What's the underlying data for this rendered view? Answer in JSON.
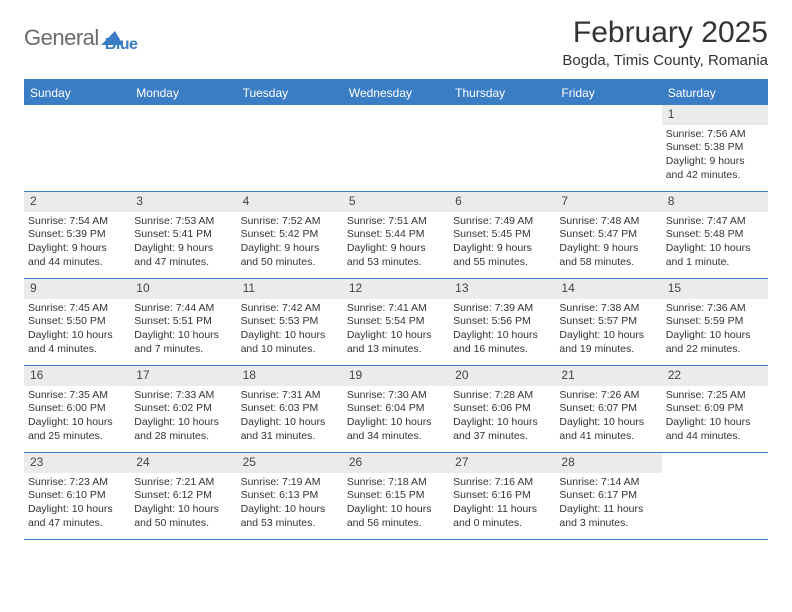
{
  "logo": {
    "text1": "General",
    "text2": "Blue"
  },
  "title": "February 2025",
  "location": "Bogda, Timis County, Romania",
  "weekday_labels": [
    "Sunday",
    "Monday",
    "Tuesday",
    "Wednesday",
    "Thursday",
    "Friday",
    "Saturday"
  ],
  "colors": {
    "accent": "#3b7dc4",
    "weekday_bg": "#3b7dc4",
    "weekday_text": "#ffffff",
    "daynum_bg": "#ebebeb",
    "text": "#333333",
    "logo_gray": "#6b6b6b"
  },
  "weeks": [
    [
      null,
      null,
      null,
      null,
      null,
      null,
      {
        "d": "1",
        "sunrise": "7:56 AM",
        "sunset": "5:38 PM",
        "daylight": "9 hours and 42 minutes."
      }
    ],
    [
      {
        "d": "2",
        "sunrise": "7:54 AM",
        "sunset": "5:39 PM",
        "daylight": "9 hours and 44 minutes."
      },
      {
        "d": "3",
        "sunrise": "7:53 AM",
        "sunset": "5:41 PM",
        "daylight": "9 hours and 47 minutes."
      },
      {
        "d": "4",
        "sunrise": "7:52 AM",
        "sunset": "5:42 PM",
        "daylight": "9 hours and 50 minutes."
      },
      {
        "d": "5",
        "sunrise": "7:51 AM",
        "sunset": "5:44 PM",
        "daylight": "9 hours and 53 minutes."
      },
      {
        "d": "6",
        "sunrise": "7:49 AM",
        "sunset": "5:45 PM",
        "daylight": "9 hours and 55 minutes."
      },
      {
        "d": "7",
        "sunrise": "7:48 AM",
        "sunset": "5:47 PM",
        "daylight": "9 hours and 58 minutes."
      },
      {
        "d": "8",
        "sunrise": "7:47 AM",
        "sunset": "5:48 PM",
        "daylight": "10 hours and 1 minute."
      }
    ],
    [
      {
        "d": "9",
        "sunrise": "7:45 AM",
        "sunset": "5:50 PM",
        "daylight": "10 hours and 4 minutes."
      },
      {
        "d": "10",
        "sunrise": "7:44 AM",
        "sunset": "5:51 PM",
        "daylight": "10 hours and 7 minutes."
      },
      {
        "d": "11",
        "sunrise": "7:42 AM",
        "sunset": "5:53 PM",
        "daylight": "10 hours and 10 minutes."
      },
      {
        "d": "12",
        "sunrise": "7:41 AM",
        "sunset": "5:54 PM",
        "daylight": "10 hours and 13 minutes."
      },
      {
        "d": "13",
        "sunrise": "7:39 AM",
        "sunset": "5:56 PM",
        "daylight": "10 hours and 16 minutes."
      },
      {
        "d": "14",
        "sunrise": "7:38 AM",
        "sunset": "5:57 PM",
        "daylight": "10 hours and 19 minutes."
      },
      {
        "d": "15",
        "sunrise": "7:36 AM",
        "sunset": "5:59 PM",
        "daylight": "10 hours and 22 minutes."
      }
    ],
    [
      {
        "d": "16",
        "sunrise": "7:35 AM",
        "sunset": "6:00 PM",
        "daylight": "10 hours and 25 minutes."
      },
      {
        "d": "17",
        "sunrise": "7:33 AM",
        "sunset": "6:02 PM",
        "daylight": "10 hours and 28 minutes."
      },
      {
        "d": "18",
        "sunrise": "7:31 AM",
        "sunset": "6:03 PM",
        "daylight": "10 hours and 31 minutes."
      },
      {
        "d": "19",
        "sunrise": "7:30 AM",
        "sunset": "6:04 PM",
        "daylight": "10 hours and 34 minutes."
      },
      {
        "d": "20",
        "sunrise": "7:28 AM",
        "sunset": "6:06 PM",
        "daylight": "10 hours and 37 minutes."
      },
      {
        "d": "21",
        "sunrise": "7:26 AM",
        "sunset": "6:07 PM",
        "daylight": "10 hours and 41 minutes."
      },
      {
        "d": "22",
        "sunrise": "7:25 AM",
        "sunset": "6:09 PM",
        "daylight": "10 hours and 44 minutes."
      }
    ],
    [
      {
        "d": "23",
        "sunrise": "7:23 AM",
        "sunset": "6:10 PM",
        "daylight": "10 hours and 47 minutes."
      },
      {
        "d": "24",
        "sunrise": "7:21 AM",
        "sunset": "6:12 PM",
        "daylight": "10 hours and 50 minutes."
      },
      {
        "d": "25",
        "sunrise": "7:19 AM",
        "sunset": "6:13 PM",
        "daylight": "10 hours and 53 minutes."
      },
      {
        "d": "26",
        "sunrise": "7:18 AM",
        "sunset": "6:15 PM",
        "daylight": "10 hours and 56 minutes."
      },
      {
        "d": "27",
        "sunrise": "7:16 AM",
        "sunset": "6:16 PM",
        "daylight": "11 hours and 0 minutes."
      },
      {
        "d": "28",
        "sunrise": "7:14 AM",
        "sunset": "6:17 PM",
        "daylight": "11 hours and 3 minutes."
      },
      null
    ]
  ],
  "labels": {
    "sunrise": "Sunrise:",
    "sunset": "Sunset:",
    "daylight": "Daylight:"
  }
}
